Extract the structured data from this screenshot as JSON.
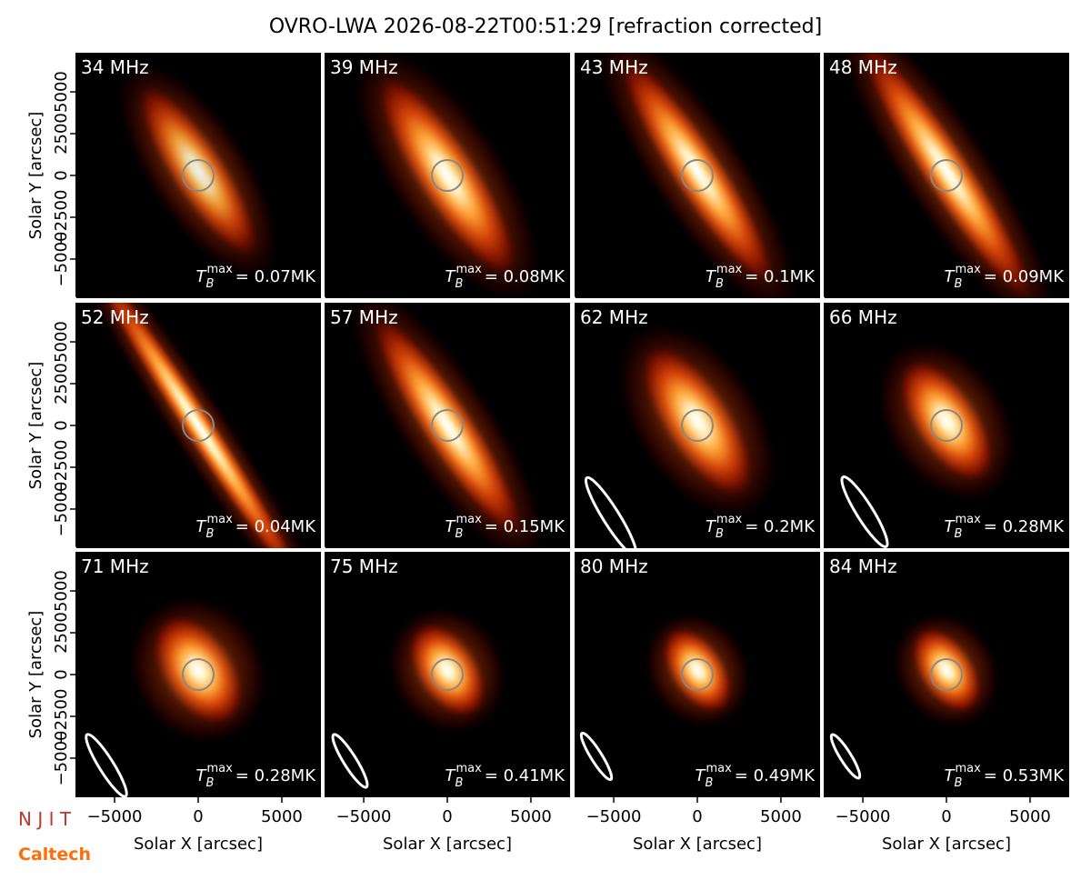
{
  "suptitle": "OVRO-LWA 2026-08-22T00:51:29 [refraction corrected]",
  "tb_label": {
    "symbol": "T",
    "sub": "B",
    "sup": "max"
  },
  "logos": [
    "N J I T",
    "Caltech"
  ],
  "chart_data": [
    {
      "type": "image",
      "title": "34 MHz",
      "annotation": "= 0.07MK",
      "xlim": [
        -7340,
        7340
      ],
      "ylim": [
        -7340,
        7340
      ],
      "ylabel": "Solar Y [arcsec]",
      "yticks": [
        {
          "value": -5000,
          "label": "−5000"
        },
        {
          "value": -2500,
          "label": "−2500"
        },
        0,
        2500,
        5000
      ]
    },
    {
      "type": "image",
      "title": "39 MHz",
      "annotation": "= 0.08MK",
      "xlim": [
        -7340,
        7340
      ],
      "ylim": [
        -7340,
        7340
      ]
    },
    {
      "type": "image",
      "title": "43 MHz",
      "annotation": "= 0.1MK",
      "xlim": [
        -7340,
        7340
      ],
      "ylim": [
        -7340,
        7340
      ]
    },
    {
      "type": "image",
      "title": "48 MHz",
      "annotation": "= 0.09MK",
      "xlim": [
        -7340,
        7340
      ],
      "ylim": [
        -7340,
        7340
      ]
    },
    {
      "type": "image",
      "title": "52 MHz",
      "annotation": "= 0.04MK",
      "xlim": [
        -7340,
        7340
      ],
      "ylim": [
        -7340,
        7340
      ],
      "ylabel": "Solar Y [arcsec]",
      "yticks": [
        {
          "value": -5000,
          "label": "−5000"
        },
        {
          "value": -2500,
          "label": "−2500"
        },
        0,
        2500,
        5000
      ]
    },
    {
      "type": "image",
      "title": "57 MHz",
      "annotation": "= 0.15MK",
      "xlim": [
        -7340,
        7340
      ],
      "ylim": [
        -7340,
        7340
      ]
    },
    {
      "type": "image",
      "title": "62 MHz",
      "annotation": "= 0.2MK",
      "xlim": [
        -7340,
        7340
      ],
      "ylim": [
        -7340,
        7340
      ]
    },
    {
      "type": "image",
      "title": "66 MHz",
      "annotation": "= 0.28MK",
      "xlim": [
        -7340,
        7340
      ],
      "ylim": [
        -7340,
        7340
      ]
    },
    {
      "type": "image",
      "title": "71 MHz",
      "annotation": "= 0.28MK",
      "xlim": [
        -7340,
        7340
      ],
      "ylim": [
        -7340,
        7340
      ],
      "ylabel": "Solar Y [arcsec]",
      "yticks": [
        {
          "value": -5000,
          "label": "−5000"
        },
        {
          "value": -2500,
          "label": "−2500"
        },
        0,
        2500,
        5000
      ],
      "xlabel": "Solar X [arcsec]",
      "xticks": [
        {
          "value": -5000,
          "label": "−5000"
        },
        0,
        5000
      ]
    },
    {
      "type": "image",
      "title": "75 MHz",
      "annotation": "= 0.41MK",
      "xlim": [
        -7340,
        7340
      ],
      "ylim": [
        -7340,
        7340
      ],
      "xlabel": "Solar X [arcsec]",
      "xticks": [
        {
          "value": -5000,
          "label": "−5000"
        },
        0,
        5000
      ]
    },
    {
      "type": "image",
      "title": "80 MHz",
      "annotation": "= 0.49MK",
      "xlim": [
        -7340,
        7340
      ],
      "ylim": [
        -7340,
        7340
      ],
      "xlabel": "Solar X [arcsec]",
      "xticks": [
        {
          "value": -5000,
          "label": "−5000"
        },
        0,
        5000
      ]
    },
    {
      "type": "image",
      "title": "84 MHz",
      "annotation": "= 0.53MK",
      "xlim": [
        -7340,
        7340
      ],
      "ylim": [
        -7340,
        7340
      ],
      "xlabel": "Solar X [arcsec]",
      "xticks": [
        {
          "value": -5000,
          "label": "−5000"
        },
        0,
        5000
      ]
    }
  ]
}
